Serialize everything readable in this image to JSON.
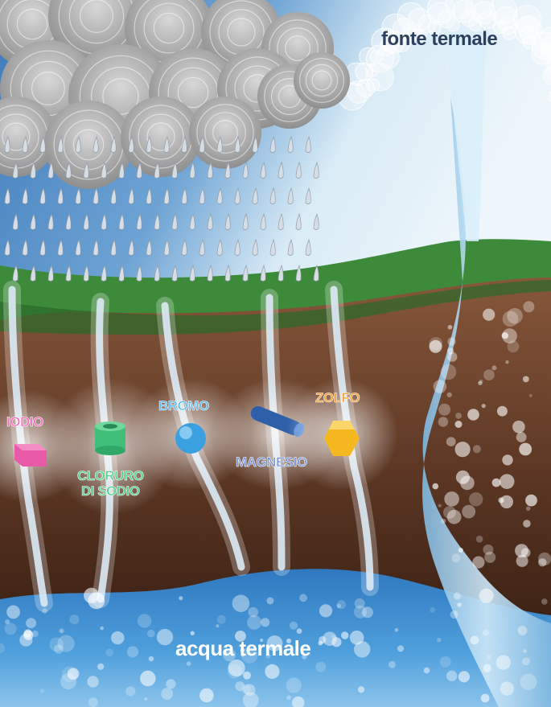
{
  "title": "fonte termale",
  "bottom_label": "acqua termale",
  "minerals": [
    {
      "label": "IODIO",
      "shape": "box-icon",
      "color": "#e85aa8",
      "text_color": "#f06cb8"
    },
    {
      "label": "CLORURO",
      "label2": "DI SODIO",
      "shape": "cylinder-icon",
      "color": "#3fbf7a",
      "text_color": "#4fd08a"
    },
    {
      "label": "BROMO",
      "shape": "sphere-icon",
      "color": "#3aa0e0",
      "text_color": "#5ab8f0"
    },
    {
      "label": "MAGNESIO",
      "shape": "rod-icon",
      "color": "#2f5fa8",
      "text_color": "#6f8fd8"
    },
    {
      "label": "ZOLFO",
      "shape": "hexagon-icon",
      "color": "#f5b820",
      "text_color": "#f5a030"
    }
  ],
  "colors": {
    "sky": "#cfe4f2",
    "rain_sky": "#4a86c0",
    "grass": "#3c8a3c",
    "soil_top": "#7a5138",
    "soil_bottom": "#2e1a10",
    "water": "#3f8fd0",
    "spring": "#a8d4f0"
  }
}
